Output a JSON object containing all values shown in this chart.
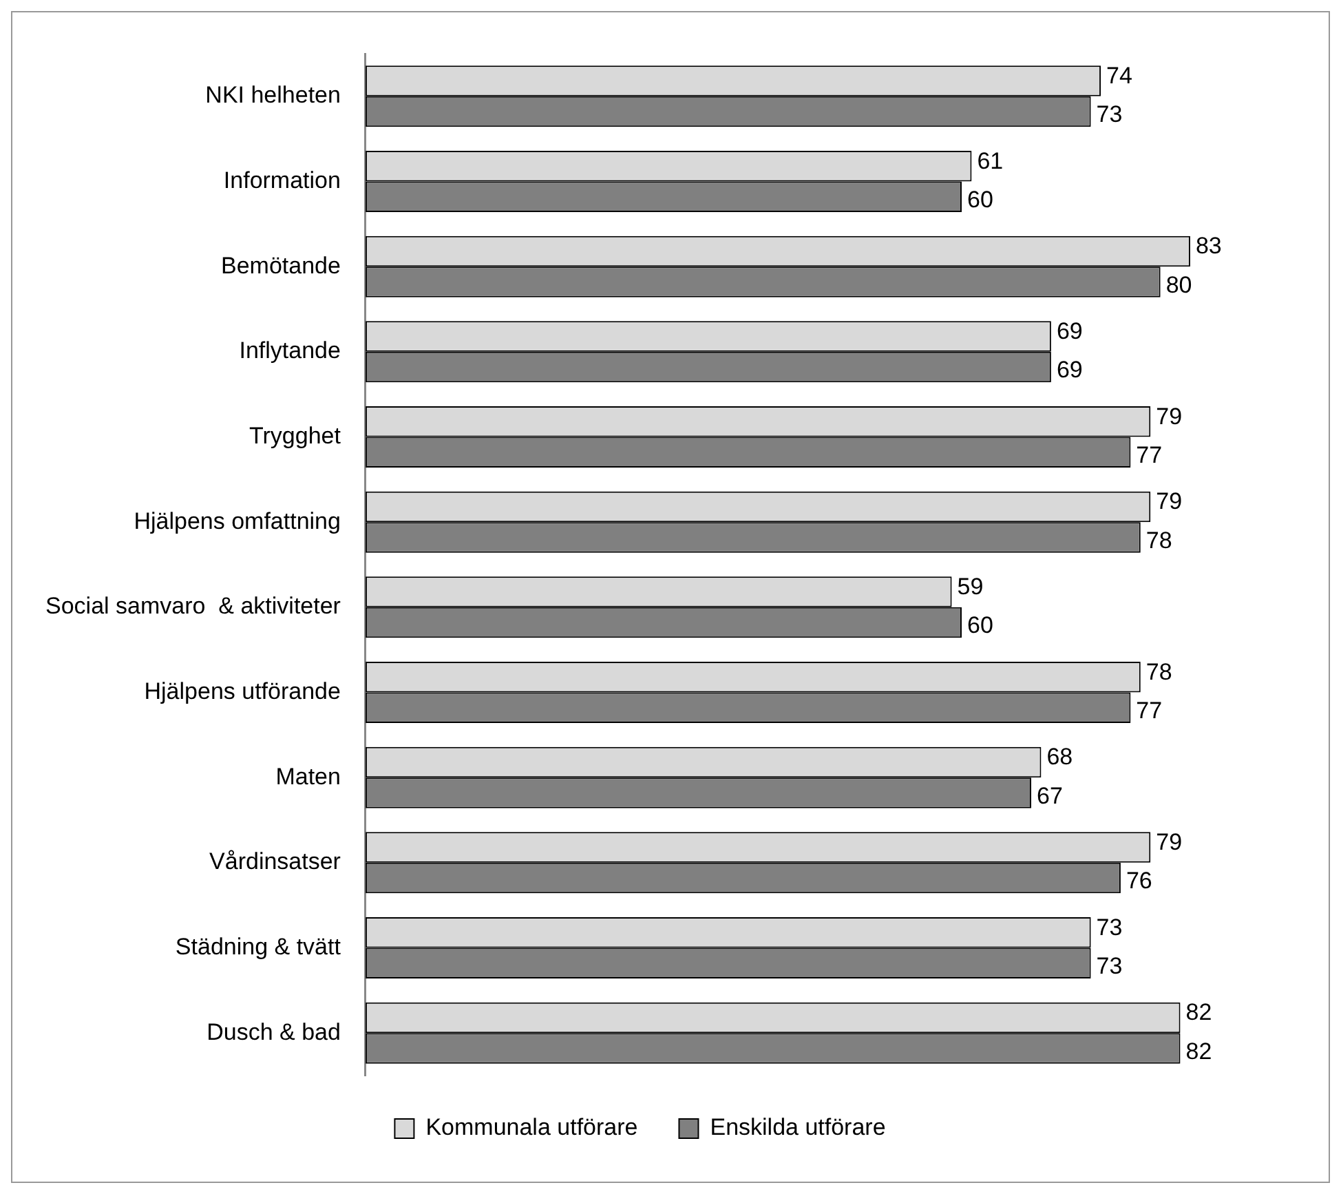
{
  "chart_data": {
    "type": "bar",
    "orientation": "horizontal",
    "categories": [
      "NKI helheten",
      "Information",
      "Bemötande",
      "Inflytande",
      "Trygghet",
      "Hjälpens omfattning",
      "Social samvaro  & aktiviteter",
      "Hjälpens utförande",
      "Maten",
      "Vårdinsatser",
      "Städning & tvätt",
      "Dusch & bad"
    ],
    "series": [
      {
        "name": "Kommunala utförare",
        "color": "#d9d9d9",
        "values": [
          74,
          61,
          83,
          69,
          79,
          79,
          59,
          78,
          68,
          79,
          73,
          82
        ]
      },
      {
        "name": "Enskilda utförare",
        "color": "#808080",
        "values": [
          73,
          60,
          80,
          69,
          77,
          78,
          60,
          77,
          67,
          76,
          73,
          82
        ]
      }
    ],
    "data_labels": true,
    "legend": "bottom",
    "grid": false,
    "tick_labels": "y"
  }
}
